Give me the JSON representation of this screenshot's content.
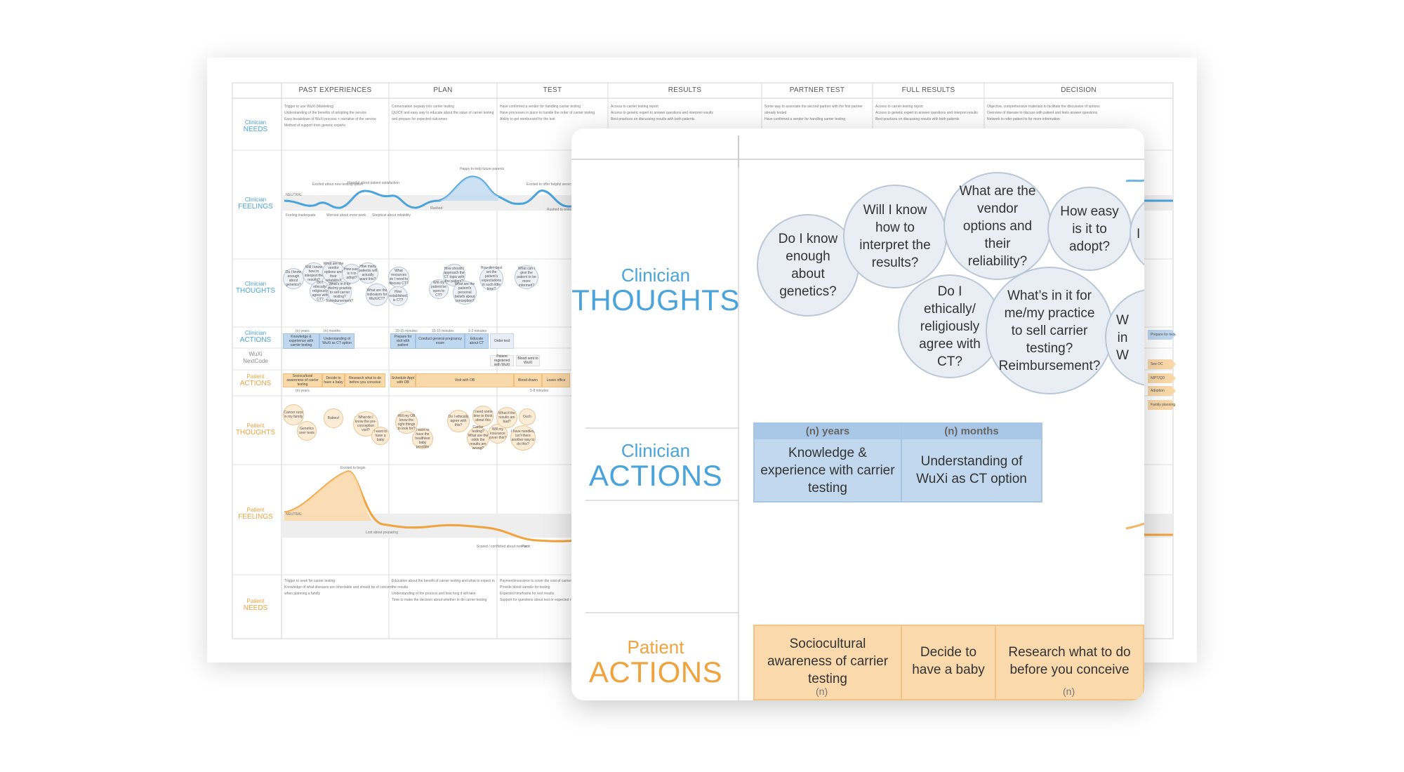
{
  "map": {
    "stages": [
      "PAST EXPERIENCES",
      "PLAN",
      "TEST",
      "RESULTS",
      "PARTNER TEST",
      "FULL RESULTS",
      "DECISION"
    ],
    "rows": [
      {
        "small": "Clinician",
        "big": "NEEDS",
        "who": "clinician"
      },
      {
        "small": "Clinician",
        "big": "FEELINGS",
        "who": "clinician"
      },
      {
        "small": "Clinician",
        "big": "THOUGHTS",
        "who": "clinician"
      },
      {
        "small": "Clinician",
        "big": "ACTIONS",
        "who": "clinician"
      },
      {
        "small": "WuXi",
        "big": "NextCode",
        "who": "clinician"
      },
      {
        "small": "Patient",
        "big": "ACTIONS",
        "who": "patient"
      },
      {
        "small": "Patient",
        "big": "THOUGHTS",
        "who": "patient"
      },
      {
        "small": "Patient",
        "big": "FEELINGS",
        "who": "patient"
      },
      {
        "small": "Patient",
        "big": "NEEDS",
        "who": "patient"
      }
    ],
    "clinician_needs": [
      [
        "Trigger to use WuXi (Marketing)",
        "Understanding of the benefits of adopting the service",
        "Easy breakdown of WuXi process + narrative of the service",
        "Method of support from genetic experts"
      ],
      [
        "Conversation segway into carrier testing",
        "QUICK and easy way to educate about the value of carrier testing",
        "and prepare for expected outcomes"
      ],
      [
        "Have confirmed a vendor for handling carrier testing",
        "Have processes in place to handle the order of carrier testing",
        "Ability to get reimbursed for the test"
      ],
      [
        "Access to carrier testing report",
        "Access to genetic expert to answer questions and interpret results",
        "Best practices on discussing results with both patients"
      ],
      [
        "Some way to associate the second partner with the first partner",
        "already tested",
        "Have confirmed a vendor for handling carrier testing"
      ],
      [
        "Access to carrier testing report",
        "Access to genetic expert to answer questions and interpret results",
        "Best practices on discussing results with both patients"
      ],
      [
        "Objective, comprehensive materials to facilitate the discussion of options",
        "Overview of disease to discuss with patient and feels answer questions",
        "Network to refer patient to for more information"
      ]
    ],
    "clinician_feelings": [
      "Excited about new testing option",
      "Hopeful about patient satisfaction",
      "Happy to help future parents",
      "Excited to offer helpful service",
      "Feeling inadequate",
      "Worried about more work",
      "Skeptical about reliability",
      "Rushed",
      "Rushed to order test",
      "NEUTRAL"
    ],
    "clinician_thoughts_mini": [
      "Do I know enough about genetics?",
      "Will I know how to interpret the results?",
      "What are the vendor options and their reliability?",
      "How easy is it to adopt?",
      "Do I ethically/ religiously agree with CT?",
      "What's in it for me/my practice to sell carrier testing? Reimbursement?",
      "How many patients will actually want this?",
      "What resources do I need to discuss CT?",
      "What are the indicators for WuXi/CT?",
      "How established is CT?",
      "Will my patient be open to CT?",
      "How should I approach the CT topic with the patient?",
      "What are the patient's personal beliefs about conception?",
      "How do I best set the patient's expectations in such little time?",
      "What can I give the patient to be more informed?"
    ],
    "clinician_actions_mini": [
      "Knowledge & experience with carrier testing",
      "Understanding of WuXi as CT option",
      "Prepare for visit with patient",
      "Conduct general pregnancy exam",
      "Educate about CT",
      "Order test",
      "(n) years",
      "(n) months",
      "10-15 minutes",
      "15-15 minutes",
      "1-2 minutes"
    ],
    "wuxi_mini": [
      "Patient registered with WuXi",
      "Blood sent to WuXi"
    ],
    "patient_actions_mini": [
      "Sociocultural awareness of carrier testing",
      "Decide to have a baby",
      "Research what to do before you conceive",
      "Schedule Appt with OB",
      "Visit with OB",
      "Blood drawn",
      "Leave office",
      "(n) years",
      "5-8 minutes"
    ],
    "patient_thoughts_mini": [
      "Cancer runs in my family",
      "Genetics over tests",
      "Babies!",
      "What do I know the pre-conception visit?",
      "I want to have a baby",
      "Will my OB know the right things to look for?",
      "I want to have the healthiest baby possible",
      "Do I ethically agree with this?",
      "I need some time to think about this",
      "Carrier testing? What are the odds the results are wrong?",
      "Will my insurance cover this?",
      "What if the results are bad?",
      "Ouch",
      "I have needles, isn't there another way to do this?"
    ],
    "patient_feelings": [
      "Excited to begin",
      "Lost about preparing",
      "Scared / conflicted about new tech",
      "Pain",
      "NEUTRAL"
    ],
    "patient_needs": [
      [
        "Trigger to seek for carrier testing",
        "Knowledge of what diseases are inheritable and should be of concern",
        "when planning a family"
      ],
      [
        "Education about the benefit of carrier testing and what to expect in",
        "the results",
        "Understanding of the process and how long it will take",
        "Time to make the decision about whether to do carrier testing"
      ],
      [
        "Payment/insurance to cover the cost of carrier testing",
        "Provide blood sample for testing",
        "Expected timeframe for test results",
        "Support for questions about test or expected results"
      ]
    ],
    "right_side_mini": [
      "Prepare for next patient",
      "See OC",
      "NIPT/QD",
      "Adoption IVF/Donor",
      "Family planning"
    ]
  },
  "zoom": {
    "labels": {
      "clinician_thoughts": {
        "small": "Clinician",
        "big": "THOUGHTS"
      },
      "clinician_actions": {
        "small": "Clinician",
        "big": "ACTIONS"
      },
      "patient_actions": {
        "small": "Patient",
        "big": "ACTIONS"
      }
    },
    "bubbles": [
      "Do I know enough about genetics?",
      "Will I know how to interpret the results?",
      "What are the vendor options and their reliability?",
      "How easy is it to adopt?",
      "Do I ethically/ religiously agree with CT?",
      "What’s in it for me/my practice to sell carrier testing? Reimbursement?"
    ],
    "edge_bubbles": [
      "I a",
      "W in W"
    ],
    "clinician_actions": [
      {
        "head": "(n) years",
        "body": "Knowledge & experience with carrier testing"
      },
      {
        "head": "(n) months",
        "body": "Understanding of WuXi as CT option"
      }
    ],
    "patient_actions": [
      "Sociocultural awareness of carrier testing",
      "Decide to have a baby",
      "Research what to do before you conceive"
    ],
    "patient_action_footers": [
      "(n)",
      "(n)"
    ],
    "colors": {
      "clinician": "#4aa3da",
      "patient": "#f0a23c",
      "clinician_bar": "#c1d8ef",
      "patient_bar": "#fad9ac",
      "bubble": "#e9eef5"
    }
  }
}
